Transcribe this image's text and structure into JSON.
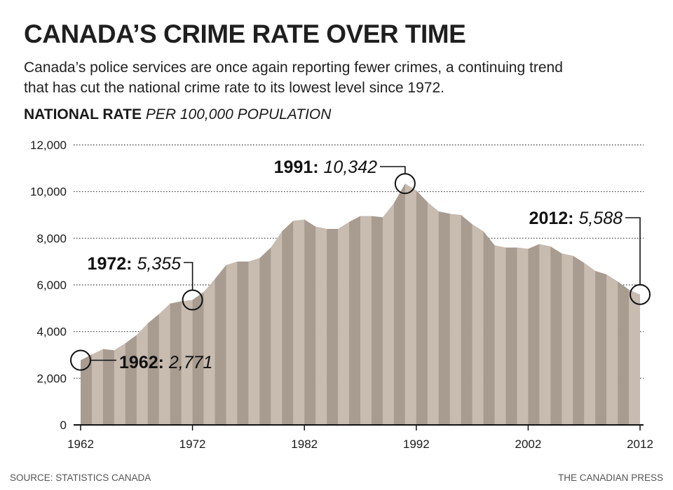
{
  "header": {
    "title": "CANADA’S CRIME RATE OVER TIME",
    "subtitle": "Canada’s police services are once again reporting fewer crimes, a continuing trend that has cut the national crime rate to its lowest level since 1972.",
    "units_bold": "NATIONAL RATE",
    "units_italic": "PER 100,000 POPULATION"
  },
  "footer": {
    "source": "SOURCE: STATISTICS CANADA",
    "credit": "THE CANADIAN PRESS"
  },
  "colors": {
    "stripe_dark": "#a89b90",
    "stripe_light": "#c8bbb0",
    "grid": "#333333",
    "axis": "#111111"
  },
  "chart_data": {
    "type": "area",
    "title": "CANADA’S CRIME RATE OVER TIME",
    "ylabel": "NATIONAL RATE PER 100,000 POPULATION",
    "xlabel": "",
    "xlim": [
      1962,
      2012
    ],
    "ylim": [
      0,
      12000
    ],
    "grid": true,
    "x_ticks": [
      1962,
      1972,
      1982,
      1992,
      2002,
      2012
    ],
    "x_tick_labels": [
      "1962",
      "1972",
      "1982",
      "1992",
      "2002",
      "2012"
    ],
    "y_ticks": [
      0,
      2000,
      4000,
      6000,
      8000,
      10000,
      12000
    ],
    "y_tick_labels": [
      "0",
      "2,000",
      "4,000",
      "6,000",
      "8,000",
      "10,000",
      "12,000"
    ],
    "x": [
      1962,
      1963,
      1964,
      1965,
      1966,
      1967,
      1968,
      1969,
      1970,
      1971,
      1972,
      1973,
      1974,
      1975,
      1976,
      1977,
      1978,
      1979,
      1980,
      1981,
      1982,
      1983,
      1984,
      1985,
      1986,
      1987,
      1988,
      1989,
      1990,
      1991,
      1992,
      1993,
      1994,
      1995,
      1996,
      1997,
      1998,
      1999,
      2000,
      2001,
      2002,
      2003,
      2004,
      2005,
      2006,
      2007,
      2008,
      2009,
      2010,
      2011,
      2012
    ],
    "values": [
      2771,
      3020,
      3250,
      3200,
      3500,
      3850,
      4350,
      4750,
      5200,
      5300,
      5355,
      5700,
      6250,
      6850,
      7000,
      7000,
      7150,
      7600,
      8300,
      8750,
      8800,
      8500,
      8400,
      8400,
      8700,
      8950,
      8950,
      8900,
      9500,
      10342,
      10050,
      9550,
      9150,
      9050,
      9000,
      8600,
      8300,
      7700,
      7600,
      7600,
      7550,
      7750,
      7650,
      7350,
      7250,
      6950,
      6600,
      6450,
      6150,
      5800,
      5588
    ],
    "annotations": [
      {
        "x": 1962,
        "y": 2771,
        "year_label": "1962:",
        "value_label": "2,771"
      },
      {
        "x": 1972,
        "y": 5355,
        "year_label": "1972:",
        "value_label": "5,355"
      },
      {
        "x": 1991,
        "y": 10342,
        "year_label": "1991:",
        "value_label": "10,342"
      },
      {
        "x": 2012,
        "y": 5588,
        "year_label": "2012:",
        "value_label": "5,588"
      }
    ]
  }
}
